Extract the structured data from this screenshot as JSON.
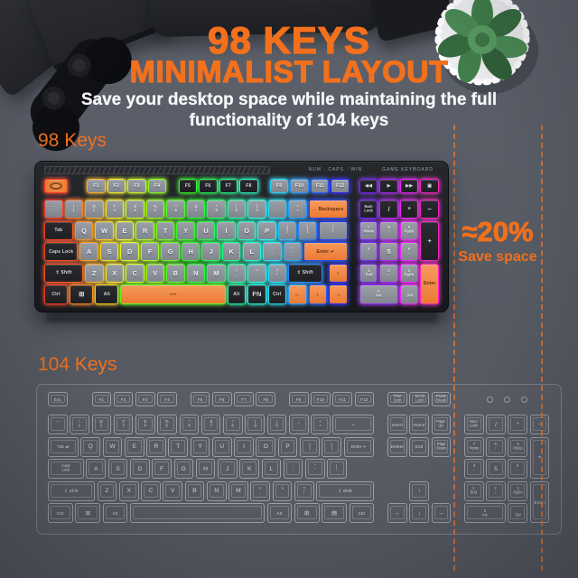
{
  "header": {
    "title_line1": "98 KEYS",
    "title_line2": "MINIMALIST LAYOUT",
    "subtitle_line1": "Save your desktop space while maintaining the full",
    "subtitle_line2": "functionality of 104 keys"
  },
  "labels": {
    "kb98": "98 Keys",
    "kb104": "104 Keys"
  },
  "savings": {
    "percent": "≈20%",
    "caption": "Save space"
  },
  "colors": {
    "accent_orange": "#f3701d",
    "background": "#575b64",
    "kb_body": "#1d1e21",
    "key_gray": "#8f929b",
    "key_black": "#242528",
    "key_orange": "#f08044",
    "outline_104": "#d4d9e3"
  },
  "kb98": {
    "indicators": "NUM · CAPS · WIN",
    "brand": "GAME KEYBOARD",
    "rows": [
      [
        [
          "",
          1.25,
          "k"
        ],
        [
          "",
          0.85,
          "_"
        ],
        [
          "F1",
          1,
          "g"
        ],
        [
          "F2",
          1,
          "g"
        ],
        [
          "F3",
          1,
          "g"
        ],
        [
          "F4",
          1,
          "g"
        ],
        [
          "",
          0.5,
          "_"
        ],
        [
          "F5",
          1,
          "b"
        ],
        [
          "F6",
          1,
          "b"
        ],
        [
          "F7",
          1,
          "b"
        ],
        [
          "F8",
          1,
          "b"
        ],
        [
          "",
          0.5,
          "_"
        ],
        [
          "F9",
          1,
          "g"
        ],
        [
          "F10",
          1,
          "g"
        ],
        [
          "F11",
          1,
          "g"
        ],
        [
          "F12",
          1,
          "g"
        ],
        [
          "",
          0.4,
          "_"
        ],
        [
          "◀◀",
          1,
          "b"
        ],
        [
          "▶",
          1,
          "b"
        ],
        [
          "▶▶",
          1,
          "b"
        ],
        [
          "▣",
          1,
          "b"
        ]
      ],
      [
        [
          "~\n`",
          1,
          "g"
        ],
        [
          "!\n1",
          1,
          "g"
        ],
        [
          "@\n2",
          1,
          "g"
        ],
        [
          "#\n3",
          1,
          "g"
        ],
        [
          "$\n4",
          1,
          "g"
        ],
        [
          "%\n5",
          1,
          "g"
        ],
        [
          "^\n6",
          1,
          "g"
        ],
        [
          "&\n7",
          1,
          "g"
        ],
        [
          "*\n8",
          1,
          "g"
        ],
        [
          "(\n9",
          1,
          "g"
        ],
        [
          ")\n0",
          1,
          "g"
        ],
        [
          "_\n-",
          1,
          "g"
        ],
        [
          "+\n=",
          1,
          "g"
        ],
        [
          "← Backspace",
          2,
          "o"
        ],
        [
          "",
          0.5,
          "_"
        ],
        [
          "Num\nLock",
          1,
          "b"
        ],
        [
          "/",
          1,
          "b"
        ],
        [
          "*",
          1,
          "b"
        ],
        [
          "−",
          1,
          "b"
        ]
      ],
      [
        [
          "Tab",
          1.5,
          "b"
        ],
        [
          "Q",
          1,
          "g"
        ],
        [
          "W",
          1,
          "g"
        ],
        [
          "E",
          1,
          "g"
        ],
        [
          "R",
          1,
          "g"
        ],
        [
          "T",
          1,
          "g"
        ],
        [
          "Y",
          1,
          "g"
        ],
        [
          "U",
          1,
          "g"
        ],
        [
          "I",
          1,
          "g"
        ],
        [
          "O",
          1,
          "g"
        ],
        [
          "P",
          1,
          "g"
        ],
        [
          "{\n[",
          1,
          "g"
        ],
        [
          "}\n]",
          1,
          "g"
        ],
        [
          "|\n\\",
          1.5,
          "g"
        ],
        [
          "",
          0.5,
          "_"
        ],
        [
          "7\nHome",
          1,
          "g"
        ],
        [
          "8\n↑",
          1,
          "g"
        ],
        [
          "9\nPgUp",
          1,
          "g"
        ],
        [
          "+",
          1,
          "b2"
        ]
      ],
      [
        [
          "Caps Lock",
          1.75,
          "b"
        ],
        [
          "A",
          1,
          "g"
        ],
        [
          "S",
          1,
          "g"
        ],
        [
          "D",
          1,
          "g"
        ],
        [
          "F",
          1,
          "g"
        ],
        [
          "G",
          1,
          "g"
        ],
        [
          "H",
          1,
          "g"
        ],
        [
          "J",
          1,
          "g"
        ],
        [
          "K",
          1,
          "g"
        ],
        [
          "L",
          1,
          "g"
        ],
        [
          ":\n;",
          1,
          "g"
        ],
        [
          "\"\n'",
          1,
          "g"
        ],
        [
          "Enter ↵",
          2.25,
          "o"
        ],
        [
          "",
          0.5,
          "_"
        ],
        [
          "4\n←",
          1,
          "g"
        ],
        [
          "5",
          1,
          "g"
        ],
        [
          "6\n→",
          1,
          "g"
        ],
        [
          "",
          1,
          "_"
        ]
      ],
      [
        [
          "⇧ Shift",
          2,
          "b"
        ],
        [
          "Z",
          1,
          "g"
        ],
        [
          "X",
          1,
          "g"
        ],
        [
          "C",
          1,
          "g"
        ],
        [
          "V",
          1,
          "g"
        ],
        [
          "B",
          1,
          "g"
        ],
        [
          "N",
          1,
          "g"
        ],
        [
          "M",
          1,
          "g"
        ],
        [
          "<\n,",
          1,
          "g"
        ],
        [
          ">\n.",
          1,
          "g"
        ],
        [
          "?\n/",
          1,
          "g"
        ],
        [
          "⇧ Shift",
          1.75,
          "b"
        ],
        [
          "",
          0.25,
          "_"
        ],
        [
          "↑",
          1,
          "o"
        ],
        [
          "",
          0.5,
          "_"
        ],
        [
          "1\nEnd",
          1,
          "g"
        ],
        [
          "2\n↓",
          1,
          "g"
        ],
        [
          "3\nPgDn",
          1,
          "g"
        ],
        [
          "Enter",
          1,
          "o2"
        ]
      ],
      [
        [
          "Ctrl",
          1.25,
          "b"
        ],
        [
          "⊞",
          1.25,
          "b"
        ],
        [
          "Alt",
          1.25,
          "b"
        ],
        [
          "—",
          5.25,
          "o"
        ],
        [
          "Alt",
          1,
          "b"
        ],
        [
          "FN",
          1,
          "b"
        ],
        [
          "Ctrl",
          1,
          "b"
        ],
        [
          "←",
          1,
          "o"
        ],
        [
          "↓",
          1,
          "o"
        ],
        [
          "→",
          1,
          "o"
        ],
        [
          "",
          0.5,
          "_"
        ],
        [
          "0\nIns",
          2,
          "g"
        ],
        [
          ".\nDel",
          1,
          "g"
        ],
        [
          "",
          1,
          "_"
        ]
      ]
    ]
  },
  "kb104": {
    "rows": [
      [
        [
          "Esc",
          1,
          "l"
        ],
        [
          "",
          1,
          "_"
        ],
        [
          "F1",
          1,
          "l"
        ],
        [
          "F2",
          1,
          "l"
        ],
        [
          "F3",
          1,
          "l"
        ],
        [
          "F4",
          1,
          "l"
        ],
        [
          "",
          0.5,
          "_"
        ],
        [
          "F5",
          1,
          "l"
        ],
        [
          "F6",
          1,
          "l"
        ],
        [
          "F7",
          1,
          "l"
        ],
        [
          "F8",
          1,
          "l"
        ],
        [
          "",
          0.5,
          "_"
        ],
        [
          "F9",
          1,
          "l"
        ],
        [
          "F10",
          1,
          "l"
        ],
        [
          "F11",
          1,
          "l"
        ],
        [
          "F12",
          1,
          "l"
        ],
        [
          "",
          0.5,
          "_"
        ],
        [
          "Print\nScrn",
          1,
          "l"
        ],
        [
          "Scroll\nLock",
          1,
          "l"
        ],
        [
          "Pause\nBreak",
          1,
          "l"
        ],
        [
          "",
          0.5,
          "_"
        ],
        [
          "",
          4,
          "L"
        ]
      ],
      [
        [
          "~\n`",
          1,
          "l"
        ],
        [
          "!\n1",
          1,
          "l"
        ],
        [
          "@\n2",
          1,
          "l"
        ],
        [
          "#\n3",
          1,
          "l"
        ],
        [
          "$\n4",
          1,
          "l"
        ],
        [
          "%\n5",
          1,
          "l"
        ],
        [
          "^\n6",
          1,
          "l"
        ],
        [
          "&\n7",
          1,
          "l"
        ],
        [
          "*\n8",
          1,
          "l"
        ],
        [
          "(\n9",
          1,
          "l"
        ],
        [
          ")\n0",
          1,
          "l"
        ],
        [
          "_\n-",
          1,
          "l"
        ],
        [
          "+\n=",
          1,
          "l"
        ],
        [
          "←",
          2,
          "l"
        ],
        [
          "",
          0.5,
          "_"
        ],
        [
          "Insert",
          1,
          "l"
        ],
        [
          "Home",
          1,
          "l"
        ],
        [
          "Page\nUp",
          1,
          "l"
        ],
        [
          "",
          0.5,
          "_"
        ],
        [
          "Num\nLock",
          1,
          "l"
        ],
        [
          "/",
          1,
          "l"
        ],
        [
          "*",
          1,
          "l"
        ],
        [
          "−",
          1,
          "l"
        ]
      ],
      [
        [
          "Tab ⇄",
          1.5,
          "l"
        ],
        [
          "Q",
          1,
          "l"
        ],
        [
          "W",
          1,
          "l"
        ],
        [
          "E",
          1,
          "l"
        ],
        [
          "R",
          1,
          "l"
        ],
        [
          "T",
          1,
          "l"
        ],
        [
          "Y",
          1,
          "l"
        ],
        [
          "U",
          1,
          "l"
        ],
        [
          "I",
          1,
          "l"
        ],
        [
          "O",
          1,
          "l"
        ],
        [
          "P",
          1,
          "l"
        ],
        [
          "{\n[",
          1,
          "l"
        ],
        [
          "}\n]",
          1,
          "l"
        ],
        [
          "Enter ↵",
          1.5,
          "l"
        ],
        [
          "",
          0.5,
          "_"
        ],
        [
          "Delete",
          1,
          "l"
        ],
        [
          "End",
          1,
          "l"
        ],
        [
          "Page\nDown",
          1,
          "l"
        ],
        [
          "",
          0.5,
          "_"
        ],
        [
          "7\nHome",
          1,
          "l"
        ],
        [
          "8\n↑",
          1,
          "l"
        ],
        [
          "9\nPgUp",
          1,
          "l"
        ],
        [
          "+",
          1,
          "l2"
        ]
      ],
      [
        [
          "Caps\nLock",
          1.75,
          "l"
        ],
        [
          "A",
          1,
          "l"
        ],
        [
          "S",
          1,
          "l"
        ],
        [
          "D",
          1,
          "l"
        ],
        [
          "F",
          1,
          "l"
        ],
        [
          "G",
          1,
          "l"
        ],
        [
          "H",
          1,
          "l"
        ],
        [
          "J",
          1,
          "l"
        ],
        [
          "K",
          1,
          "l"
        ],
        [
          "L",
          1,
          "l"
        ],
        [
          ":\n;",
          1,
          "l"
        ],
        [
          "\"\n'",
          1,
          "l"
        ],
        [
          "|\n\\",
          1,
          "l"
        ],
        [
          "",
          1.25,
          "_"
        ],
        [
          "",
          0.5,
          "_"
        ],
        [
          "",
          3,
          "_"
        ],
        [
          "",
          0.5,
          "_"
        ],
        [
          "4\n←",
          1,
          "l"
        ],
        [
          "5",
          1,
          "l"
        ],
        [
          "6\n→",
          1,
          "l"
        ],
        [
          "",
          1,
          "_"
        ]
      ],
      [
        [
          "⇧ Shift",
          2.25,
          "l"
        ],
        [
          "Z",
          1,
          "l"
        ],
        [
          "X",
          1,
          "l"
        ],
        [
          "C",
          1,
          "l"
        ],
        [
          "V",
          1,
          "l"
        ],
        [
          "B",
          1,
          "l"
        ],
        [
          "N",
          1,
          "l"
        ],
        [
          "M",
          1,
          "l"
        ],
        [
          "<\n,",
          1,
          "l"
        ],
        [
          ">\n.",
          1,
          "l"
        ],
        [
          "?\n/",
          1,
          "l"
        ],
        [
          "⇧ Shift",
          2.75,
          "l"
        ],
        [
          "",
          0.5,
          "_"
        ],
        [
          "",
          1,
          "_"
        ],
        [
          "↑",
          1,
          "l"
        ],
        [
          "",
          1,
          "_"
        ],
        [
          "",
          0.5,
          "_"
        ],
        [
          "1\nEnd",
          1,
          "l"
        ],
        [
          "2\n↓",
          1,
          "l"
        ],
        [
          "3\nPgDn",
          1,
          "l"
        ],
        [
          "Enter",
          1,
          "l2"
        ]
      ],
      [
        [
          "Ctrl",
          1.25,
          "l"
        ],
        [
          "⊞",
          1.25,
          "l"
        ],
        [
          "Alt",
          1.25,
          "l"
        ],
        [
          "",
          6.25,
          "l"
        ],
        [
          "Alt",
          1.25,
          "l"
        ],
        [
          "⊞",
          1.25,
          "l"
        ],
        [
          "▤",
          1.25,
          "l"
        ],
        [
          "Ctrl",
          1.25,
          "l"
        ],
        [
          "",
          0.5,
          "_"
        ],
        [
          "←",
          1,
          "l"
        ],
        [
          "↓",
          1,
          "l"
        ],
        [
          "→",
          1,
          "l"
        ],
        [
          "",
          0.5,
          "_"
        ],
        [
          "0\nIns",
          2,
          "l"
        ],
        [
          ".\nDel",
          1,
          "l"
        ],
        [
          "",
          1,
          "_"
        ]
      ]
    ]
  }
}
